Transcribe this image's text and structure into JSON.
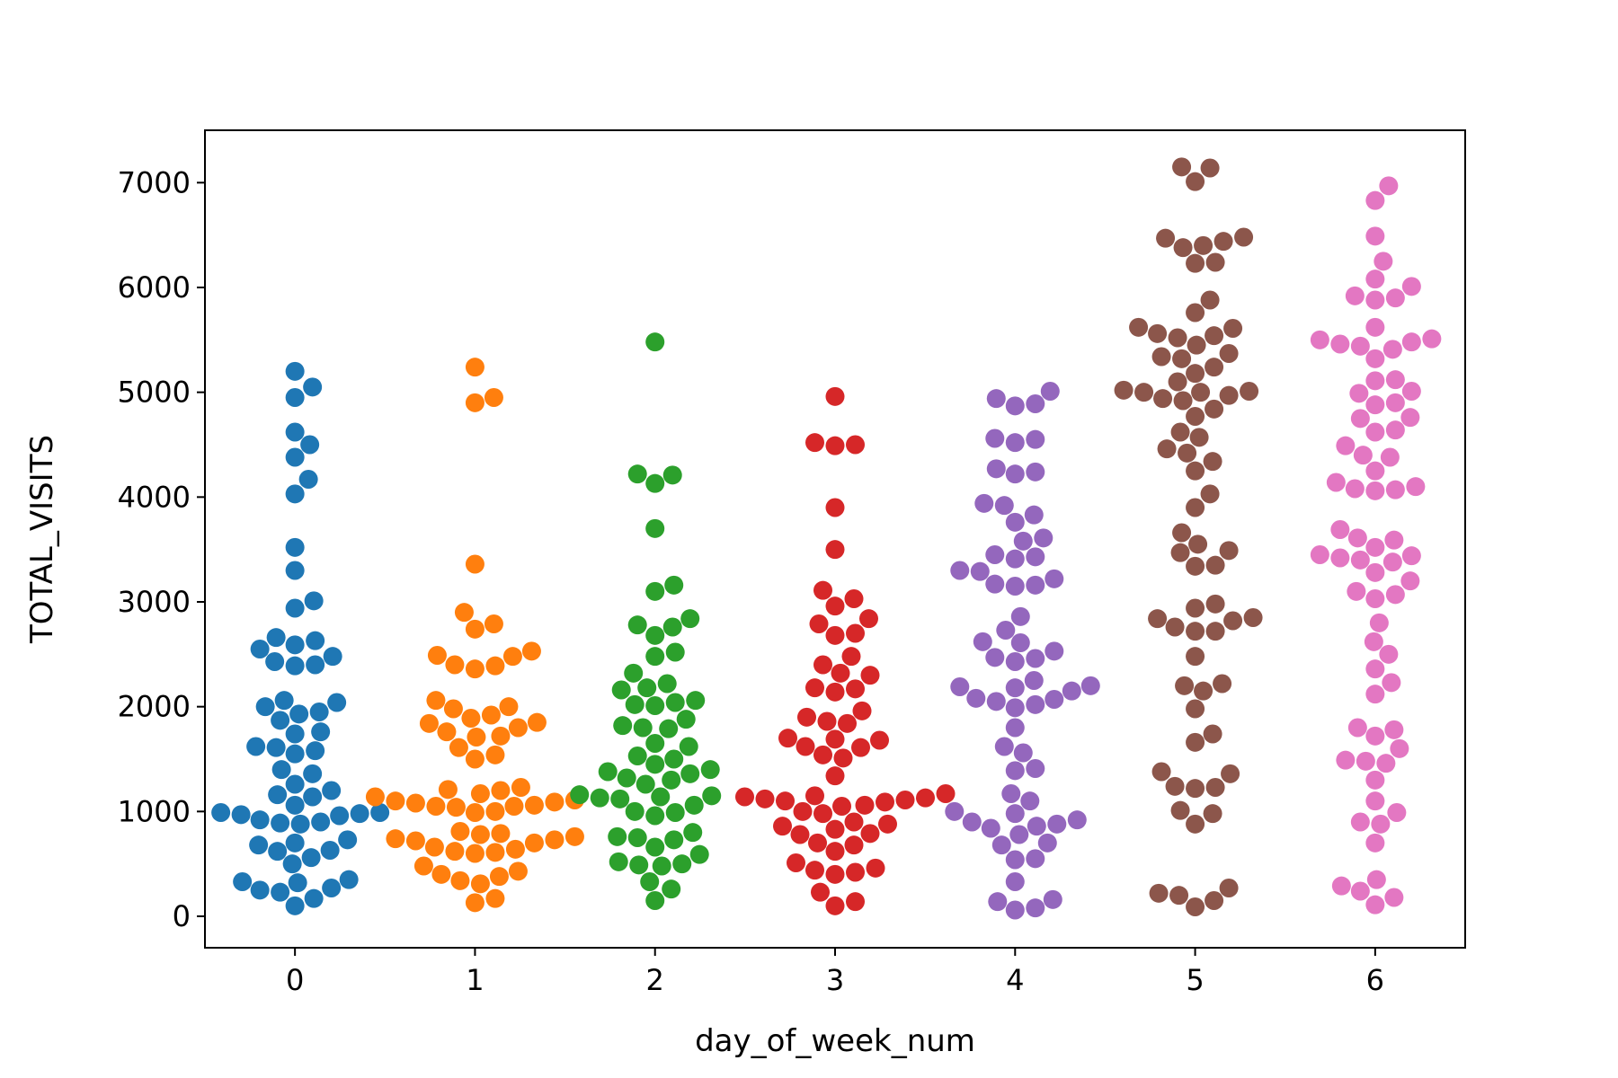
{
  "chart_data": {
    "type": "scatter",
    "subtype": "swarm",
    "title": "",
    "xlabel": "day_of_week_num",
    "ylabel": "TOTAL_VISITS",
    "categories": [
      "0",
      "1",
      "2",
      "3",
      "4",
      "5",
      "6"
    ],
    "xlim": [
      -0.5,
      6.5
    ],
    "ylim": [
      -300,
      7500
    ],
    "yticks": [
      0,
      1000,
      2000,
      3000,
      4000,
      5000,
      6000,
      7000
    ],
    "ytick_labels": [
      "0",
      "1000",
      "2000",
      "3000",
      "4000",
      "5000",
      "6000",
      "7000"
    ],
    "grid": false,
    "legend": "none",
    "colors": [
      "#1f77b4",
      "#ff7f0e",
      "#2ca02c",
      "#d62728",
      "#9467bd",
      "#8c564b",
      "#e377c2"
    ],
    "series": [
      {
        "category": "0",
        "values": [
          5200,
          5050,
          4950,
          4620,
          4500,
          4380,
          4170,
          4030,
          3520,
          3300,
          3010,
          2940,
          2660,
          2630,
          2590,
          2550,
          2480,
          2430,
          2400,
          2390,
          2060,
          2040,
          2000,
          1950,
          1930,
          1870,
          1760,
          1740,
          1620,
          1610,
          1580,
          1550,
          1400,
          1360,
          1260,
          1200,
          1160,
          1140,
          1060,
          990,
          990,
          980,
          970,
          960,
          920,
          900,
          890,
          880,
          730,
          700,
          680,
          630,
          620,
          560,
          500,
          350,
          330,
          320,
          270,
          250,
          230,
          170,
          100
        ]
      },
      {
        "category": "1",
        "values": [
          5240,
          4950,
          4900,
          3360,
          2900,
          2790,
          2740,
          2530,
          2490,
          2480,
          2400,
          2390,
          2360,
          2060,
          2000,
          1980,
          1920,
          1890,
          1850,
          1840,
          1800,
          1760,
          1720,
          1710,
          1610,
          1540,
          1500,
          1230,
          1210,
          1200,
          1170,
          1140,
          1110,
          1100,
          1090,
          1080,
          1060,
          1050,
          1050,
          1040,
          1000,
          990,
          810,
          790,
          780,
          760,
          740,
          730,
          720,
          700,
          660,
          640,
          620,
          610,
          600,
          480,
          430,
          400,
          380,
          340,
          310,
          170,
          130
        ]
      },
      {
        "category": "2",
        "values": [
          5480,
          4220,
          4210,
          4130,
          3700,
          3160,
          3100,
          2840,
          2780,
          2760,
          2680,
          2520,
          2480,
          2320,
          2220,
          2180,
          2160,
          2060,
          2040,
          2020,
          2010,
          1880,
          1820,
          1800,
          1790,
          1650,
          1620,
          1530,
          1500,
          1450,
          1400,
          1380,
          1360,
          1320,
          1300,
          1260,
          1160,
          1150,
          1140,
          1130,
          1120,
          1060,
          1000,
          990,
          960,
          800,
          760,
          750,
          730,
          660,
          590,
          520,
          500,
          490,
          480,
          330,
          260,
          150
        ]
      },
      {
        "category": "3",
        "values": [
          4960,
          4520,
          4500,
          4490,
          3900,
          3500,
          3110,
          3030,
          2960,
          2840,
          2790,
          2700,
          2680,
          2480,
          2400,
          2320,
          2300,
          2180,
          2170,
          2140,
          1960,
          1900,
          1860,
          1840,
          1700,
          1690,
          1680,
          1620,
          1610,
          1540,
          1510,
          1340,
          1170,
          1150,
          1140,
          1130,
          1120,
          1110,
          1100,
          1090,
          1060,
          1050,
          1000,
          980,
          900,
          880,
          860,
          830,
          790,
          780,
          700,
          680,
          620,
          510,
          460,
          440,
          420,
          400,
          230,
          140,
          100
        ]
      },
      {
        "category": "4",
        "values": [
          5010,
          4940,
          4890,
          4870,
          4560,
          4550,
          4520,
          4270,
          4240,
          4220,
          3940,
          3920,
          3830,
          3760,
          3610,
          3580,
          3450,
          3430,
          3410,
          3300,
          3290,
          3220,
          3170,
          3160,
          3150,
          2860,
          2730,
          2620,
          2610,
          2530,
          2470,
          2460,
          2430,
          2250,
          2200,
          2190,
          2180,
          2150,
          2080,
          2070,
          2050,
          2020,
          1990,
          1800,
          1620,
          1560,
          1410,
          1390,
          1170,
          1100,
          1000,
          980,
          920,
          900,
          880,
          860,
          840,
          780,
          700,
          680,
          550,
          540,
          330,
          160,
          140,
          80,
          60
        ]
      },
      {
        "category": "5",
        "values": [
          7150,
          7140,
          7010,
          6480,
          6470,
          6440,
          6400,
          6380,
          6240,
          6230,
          5880,
          5760,
          5620,
          5610,
          5560,
          5540,
          5520,
          5450,
          5370,
          5340,
          5320,
          5240,
          5180,
          5100,
          5020,
          5010,
          5000,
          5000,
          4970,
          4940,
          4920,
          4840,
          4770,
          4620,
          4570,
          4460,
          4420,
          4340,
          4250,
          4030,
          3900,
          3660,
          3550,
          3490,
          3470,
          3350,
          3340,
          2980,
          2940,
          2850,
          2840,
          2820,
          2760,
          2720,
          2720,
          2480,
          2220,
          2200,
          2150,
          1980,
          1740,
          1660,
          1380,
          1360,
          1240,
          1230,
          1220,
          1010,
          980,
          880,
          270,
          220,
          200,
          150,
          90
        ]
      },
      {
        "category": "6",
        "values": [
          6970,
          6830,
          6490,
          6250,
          6080,
          6010,
          5920,
          5900,
          5880,
          5620,
          5510,
          5500,
          5480,
          5460,
          5440,
          5410,
          5320,
          5120,
          5110,
          5010,
          4990,
          4900,
          4880,
          4760,
          4750,
          4640,
          4620,
          4490,
          4400,
          4380,
          4250,
          4140,
          4100,
          4080,
          4070,
          4060,
          3690,
          3610,
          3590,
          3520,
          3450,
          3440,
          3420,
          3400,
          3380,
          3280,
          3200,
          3100,
          3070,
          3030,
          2800,
          2620,
          2500,
          2360,
          2230,
          2120,
          1800,
          1780,
          1720,
          1600,
          1490,
          1480,
          1460,
          1300,
          1100,
          990,
          900,
          880,
          700,
          350,
          290,
          240,
          180,
          110
        ]
      }
    ]
  }
}
